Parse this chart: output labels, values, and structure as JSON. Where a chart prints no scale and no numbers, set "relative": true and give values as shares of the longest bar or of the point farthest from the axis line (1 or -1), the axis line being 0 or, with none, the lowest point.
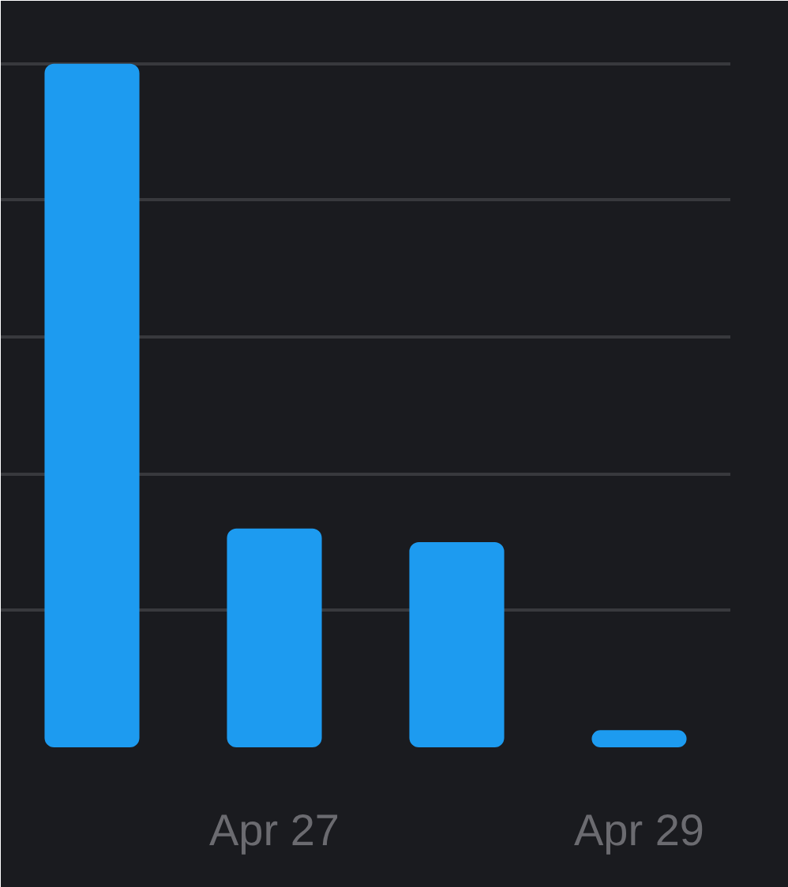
{
  "chart_data": {
    "type": "bar",
    "categories": [
      null,
      "Apr 27",
      null,
      "Apr 29"
    ],
    "values": [
      1,
      0.32,
      0.3,
      0.025
    ],
    "color": "#1d9bf0",
    "relative": true,
    "grid": "y"
  }
}
